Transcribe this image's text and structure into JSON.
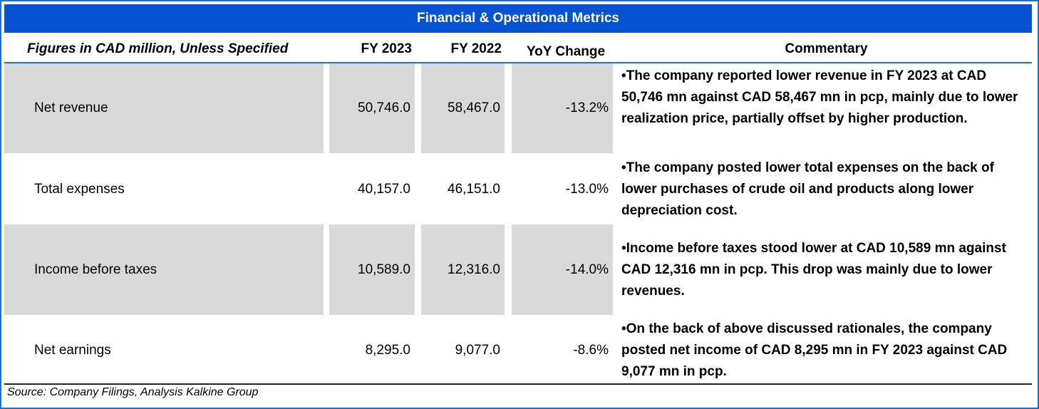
{
  "title": "Financial & Operational Metrics",
  "headers": {
    "metric": "Figures in CAD million, Unless Specified",
    "fy2023": "FY 2023",
    "fy2022": "FY 2022",
    "yoy": "YoY Change",
    "commentary": "Commentary"
  },
  "rows": [
    {
      "label": "Net revenue",
      "fy2023": "50,746.0",
      "fy2022": "58,467.0",
      "yoy": "-13.2%",
      "commentary": "•The company reported lower revenue in FY 2023 at CAD 50,746 mn against CAD 58,467 mn in pcp, mainly due to lower realization price, partially offset by higher production."
    },
    {
      "label": "Total expenses",
      "fy2023": "40,157.0",
      "fy2022": "46,151.0",
      "yoy": "-13.0%",
      "commentary": "•The company posted lower total expenses on the back of lower purchases of crude oil and products along lower depreciation cost."
    },
    {
      "label": "Income before taxes",
      "fy2023": "10,589.0",
      "fy2022": "12,316.0",
      "yoy": "-14.0%",
      "commentary": "•Income before taxes stood lower at CAD 10,589 mn against CAD 12,316 mn in pcp. This drop was mainly due to lower revenues."
    },
    {
      "label": "Net earnings",
      "fy2023": "8,295.0",
      "fy2022": "9,077.0",
      "yoy": "-8.6%",
      "commentary": "•On the back of above discussed rationales, the company posted net income of CAD 8,295 mn in FY 2023 against CAD 9,077 mn in pcp."
    }
  ],
  "source": "Source: Company Filings, Analysis Kalkine Group",
  "colors": {
    "title_bg": "#0553d1",
    "frame": "#1a73c8",
    "shade": "#d9d9d9"
  }
}
